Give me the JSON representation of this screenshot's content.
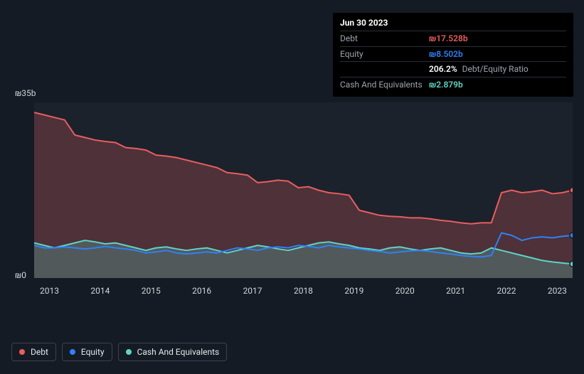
{
  "tooltip": {
    "date": "Jun 30 2023",
    "rows": [
      {
        "label": "Debt",
        "value": "₪17.528b",
        "color": "#e95e5e"
      },
      {
        "label": "Equity",
        "value": "₪8.502b",
        "color": "#2f81f7"
      }
    ],
    "ratio": {
      "value": "206.2%",
      "label": "Debt/Equity Ratio"
    },
    "cash_row": {
      "label": "Cash And Equivalents",
      "value": "₪2.879b",
      "color": "#5fd4c4"
    }
  },
  "chart": {
    "type": "area",
    "background_color": "#1b222c",
    "page_background": "#151b24",
    "y_axis": {
      "top_label": "₪35b",
      "bottom_label": "₪0",
      "min": 0,
      "max": 35
    },
    "x_axis": {
      "labels": [
        "2013",
        "2014",
        "2015",
        "2016",
        "2017",
        "2018",
        "2019",
        "2020",
        "2021",
        "2022",
        "2023"
      ]
    },
    "series": [
      {
        "name": "Debt",
        "color": "#e95e5e",
        "fill_opacity": 0.25,
        "values": [
          33,
          32.5,
          32,
          31.5,
          28.5,
          28,
          27.5,
          27.2,
          27,
          26,
          25.8,
          25.5,
          24.5,
          24.3,
          24,
          23.5,
          23,
          22.5,
          22,
          21,
          20.8,
          20.5,
          19,
          19.2,
          19.5,
          19.3,
          18,
          18.2,
          17.5,
          17,
          16.8,
          16.5,
          13.5,
          13,
          12.5,
          12.3,
          12.2,
          12,
          12,
          11.8,
          11.5,
          11.3,
          11,
          10.8,
          11,
          11,
          17,
          17.5,
          17,
          17.2,
          17.5,
          16.8,
          17,
          17.5
        ]
      },
      {
        "name": "Equity",
        "color": "#2f81f7",
        "fill_opacity": 0.0,
        "values": [
          6.5,
          6,
          6,
          6.2,
          6,
          5.8,
          6,
          6.3,
          6,
          5.8,
          5.5,
          5,
          5.2,
          5.5,
          5,
          4.8,
          5,
          5.2,
          5,
          5.5,
          6,
          5.8,
          5.5,
          6,
          6.2,
          6,
          6.5,
          6.3,
          6,
          6.5,
          6.2,
          6,
          5.8,
          5.5,
          5.3,
          5,
          5.2,
          5.4,
          5.5,
          5.3,
          5,
          4.8,
          4.5,
          4.3,
          4.2,
          4.5,
          9,
          8.5,
          7.5,
          8,
          8.2,
          8,
          8.3,
          8.5
        ]
      },
      {
        "name": "Cash And Equivalents",
        "color": "#5fd4c4",
        "fill_opacity": 0.25,
        "values": [
          7,
          6.5,
          6,
          6.5,
          7,
          7.5,
          7.2,
          6.8,
          7,
          6.5,
          6,
          5.5,
          6,
          6.2,
          5.8,
          5.5,
          5.8,
          6,
          5.5,
          5,
          5.5,
          6,
          6.5,
          6.2,
          5.8,
          5.5,
          6,
          6.5,
          7,
          7.2,
          6.8,
          6.5,
          6,
          5.8,
          5.5,
          6,
          6.2,
          5.8,
          5.5,
          5.8,
          6,
          5.5,
          5,
          4.8,
          5,
          6,
          5.5,
          5,
          4.5,
          4,
          3.5,
          3.2,
          3,
          2.8
        ]
      }
    ]
  },
  "legend": {
    "items": [
      {
        "label": "Debt",
        "color": "#e95e5e"
      },
      {
        "label": "Equity",
        "color": "#2f81f7"
      },
      {
        "label": "Cash And Equivalents",
        "color": "#5fd4c4"
      }
    ]
  }
}
